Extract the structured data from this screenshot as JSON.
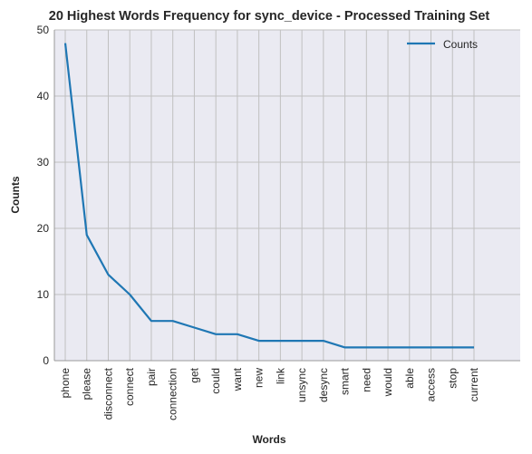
{
  "chart_data": {
    "type": "line",
    "title": "20 Highest Words Frequency for sync_device - Processed Training Set",
    "xlabel": "Words",
    "ylabel": "Counts",
    "categories": [
      "phone",
      "please",
      "disconnect",
      "connect",
      "pair",
      "connection",
      "get",
      "could",
      "want",
      "new",
      "link",
      "unsync",
      "desync",
      "smart",
      "need",
      "would",
      "able",
      "access",
      "stop",
      "current"
    ],
    "series": [
      {
        "name": "Counts",
        "values": [
          48,
          19,
          13,
          10,
          6,
          6,
          5,
          4,
          4,
          3,
          3,
          3,
          3,
          2,
          2,
          2,
          2,
          2,
          2,
          2
        ]
      }
    ],
    "ylim": [
      0,
      50
    ],
    "yticks": [
      0,
      10,
      20,
      30,
      40,
      50
    ],
    "grid": true,
    "legend": "top-right",
    "colors": {
      "line": "#1f77b4",
      "background": "#eaeaf2",
      "grid": "#c0c0c0"
    }
  }
}
